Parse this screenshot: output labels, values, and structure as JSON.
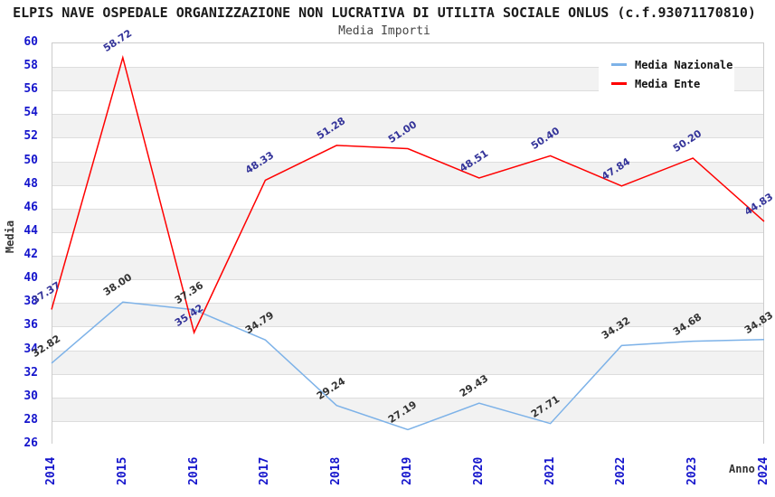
{
  "title": "ELPIS NAVE OSPEDALE ORGANIZZAZIONE NON LUCRATIVA DI UTILITA SOCIALE ONLUS (c.f.93071170810)",
  "subtitle": "Media Importi",
  "legend": {
    "items": [
      {
        "label": "Media Nazionale",
        "color": "#7db2e8"
      },
      {
        "label": "Media Ente",
        "color": "#ff0000"
      }
    ]
  },
  "axes": {
    "y_label": "Media",
    "x_label": "Anno"
  },
  "chart_data": {
    "type": "line",
    "title": "Media Importi",
    "xlabel": "Anno",
    "ylabel": "Media",
    "ylim": [
      26,
      60
    ],
    "ytick_step": 2,
    "grid": "horizontal gridlines with alternating shaded bands",
    "legend_position": "top-right",
    "tick_color": "#1414cc",
    "grid_color": "#dddddd",
    "band_color": "#f2f2f2",
    "plot_border_color": "#cccccc",
    "categories": [
      "2014",
      "2015",
      "2016",
      "2017",
      "2018",
      "2019",
      "2020",
      "2021",
      "2022",
      "2023",
      "2024"
    ],
    "series": [
      {
        "name": "Media Nazionale",
        "color": "#7db2e8",
        "label_color": "#333333",
        "values": [
          32.82,
          38.0,
          37.36,
          34.79,
          29.24,
          27.19,
          29.43,
          27.71,
          34.32,
          34.68,
          34.83
        ]
      },
      {
        "name": "Media Ente",
        "color": "#ff0000",
        "label_color": "#333399",
        "values": [
          37.37,
          58.72,
          35.42,
          48.33,
          51.28,
          51.0,
          48.51,
          50.4,
          47.84,
          50.2,
          44.83
        ]
      }
    ]
  }
}
